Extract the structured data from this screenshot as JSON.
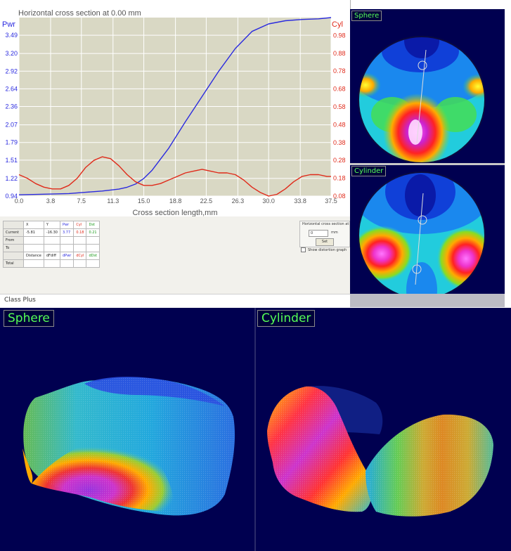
{
  "graph": {
    "title": "Horizontal cross section at 0.00 mm",
    "left_axis_label": "Pwr",
    "right_axis_label": "Cyl",
    "xlabel": "Cross section length,mm",
    "colors": {
      "power": "#2a2adf",
      "cyl": "#e02a1a",
      "plot_bg": "#d9d8c4"
    }
  },
  "chart_data": {
    "type": "line",
    "title": "Horizontal cross section at 0.00 mm",
    "xlabel": "Cross section length,mm",
    "ylabel": "Pwr",
    "y2label": "Cyl",
    "x_ticks": [
      "0.0",
      "3.8",
      "7.5",
      "11.3",
      "15.0",
      "18.8",
      "22.5",
      "26.3",
      "30.0",
      "33.8",
      "37.5"
    ],
    "y_ticks": [
      "0.94",
      "1.22",
      "1.51",
      "1.79",
      "2.07",
      "2.36",
      "2.64",
      "2.92",
      "3.20",
      "3.49"
    ],
    "y2_ticks": [
      "0.08",
      "0.18",
      "0.28",
      "0.38",
      "0.48",
      "0.58",
      "0.68",
      "0.78",
      "0.88",
      "0.98"
    ],
    "xlim": [
      0,
      37.5
    ],
    "ylim": [
      0.94,
      3.77
    ],
    "y2lim": [
      0.08,
      1.08
    ],
    "grid": true,
    "series": [
      {
        "name": "Pwr",
        "axis": "left",
        "color": "#2a2adf",
        "x": [
          0,
          3,
          6,
          8,
          10,
          12,
          13,
          14,
          15,
          16,
          18,
          20,
          22,
          24,
          26,
          28,
          30,
          32,
          34,
          36,
          37.5
        ],
        "values": [
          0.96,
          0.97,
          0.98,
          1.0,
          1.02,
          1.05,
          1.08,
          1.13,
          1.22,
          1.35,
          1.7,
          2.12,
          2.52,
          2.92,
          3.28,
          3.55,
          3.67,
          3.72,
          3.74,
          3.75,
          3.77
        ]
      },
      {
        "name": "Cyl",
        "axis": "right",
        "color": "#e02a1a",
        "x": [
          0,
          1,
          2,
          3,
          4,
          5,
          6,
          7,
          8,
          9,
          10,
          11,
          12,
          13,
          14,
          15,
          16,
          17,
          18,
          19,
          20,
          21,
          22,
          23,
          24,
          25,
          26,
          27,
          28,
          29,
          30,
          31,
          32,
          33,
          34,
          35,
          36,
          37,
          37.5
        ],
        "values": [
          0.2,
          0.18,
          0.15,
          0.13,
          0.12,
          0.12,
          0.14,
          0.18,
          0.24,
          0.28,
          0.3,
          0.29,
          0.25,
          0.2,
          0.16,
          0.14,
          0.14,
          0.15,
          0.17,
          0.19,
          0.21,
          0.22,
          0.23,
          0.22,
          0.21,
          0.21,
          0.2,
          0.17,
          0.13,
          0.1,
          0.08,
          0.09,
          0.12,
          0.16,
          0.19,
          0.2,
          0.2,
          0.19,
          0.19
        ]
      }
    ]
  },
  "table": {
    "header": [
      "",
      "X",
      "Y",
      "Pwr",
      "Cyl",
      "Dst"
    ],
    "header_colors": [
      "#222222",
      "#222222",
      "#222222",
      "#2a2adf",
      "#e02a1a",
      "#1a9a1a"
    ],
    "rows": [
      {
        "label": "Current",
        "cells": [
          "-5.81",
          "-16.30",
          "3.77",
          "0.18",
          "0.21"
        ]
      },
      {
        "label": "From",
        "cells": [
          "",
          "",
          "",
          "",
          ""
        ]
      },
      {
        "label": "To",
        "cells": [
          "",
          "",
          "",
          "",
          ""
        ]
      }
    ],
    "subheader": [
      "",
      "Distance",
      "dFdiff",
      "dPwr",
      "dCyl",
      "dDst"
    ],
    "total_label": "Total"
  },
  "hsection": {
    "title": "Horizontal cross section at",
    "value": "0",
    "unit": "mm",
    "set_label": "Set",
    "checkbox_label": "Show distortion graph"
  },
  "status": {
    "app_name": "Class Plus"
  },
  "maps": {
    "sphere_title": "Sphere",
    "cylinder_title": "Cylinder"
  },
  "views3d": {
    "sphere_title": "Sphere",
    "cylinder_title": "Cylinder"
  }
}
